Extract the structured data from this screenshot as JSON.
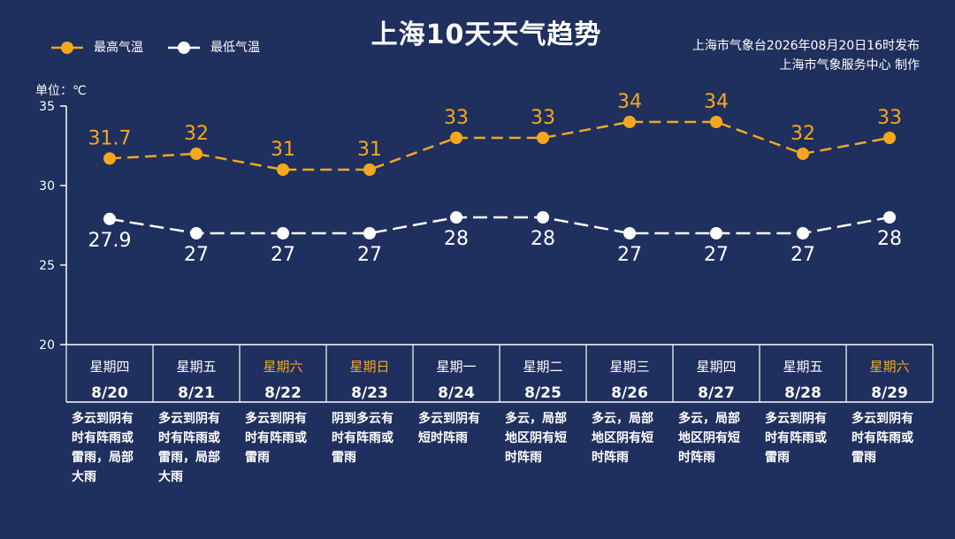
{
  "header": {
    "title": "上海10天天气趋势",
    "source_line1": "上海市气象台2026年08月20日16时发布",
    "source_line2": "上海市气象服务中心 制作"
  },
  "legend": {
    "high_label": "最高气温",
    "low_label": "最低气温"
  },
  "unit_label": "单位：℃",
  "colors": {
    "background": "#1f2f5e",
    "high_series": "#f5a81e",
    "low_series": "#ffffff",
    "weekend": "#f5a81e",
    "weekday": "#ffffff"
  },
  "chart_data": {
    "type": "line",
    "ylim": [
      20,
      35
    ],
    "yticks": [
      "35",
      "30",
      "25",
      "20"
    ],
    "categories": [
      "8/20",
      "8/21",
      "8/22",
      "8/23",
      "8/24",
      "8/25",
      "8/26",
      "8/27",
      "8/28",
      "8/29"
    ],
    "weekdays": [
      "星期四",
      "星期五",
      "星期六",
      "星期日",
      "星期一",
      "星期二",
      "星期三",
      "星期四",
      "星期五",
      "星期六"
    ],
    "weekend": [
      false,
      false,
      true,
      true,
      false,
      false,
      false,
      false,
      false,
      true
    ],
    "series": [
      {
        "name": "最高气温",
        "values": [
          31.7,
          32,
          31,
          31,
          33,
          33,
          34,
          34,
          32,
          33
        ],
        "labels": [
          "31.7",
          "32",
          "31",
          "31",
          "33",
          "33",
          "34",
          "34",
          "32",
          "33"
        ]
      },
      {
        "name": "最低气温",
        "values": [
          27.9,
          27,
          27,
          27,
          28,
          28,
          27,
          27,
          27,
          28
        ],
        "labels": [
          "27.9",
          "27",
          "27",
          "27",
          "28",
          "28",
          "27",
          "27",
          "27",
          "28"
        ]
      }
    ],
    "descriptions": [
      [
        "多云到阴有",
        "时有阵雨或",
        "雷雨，局部",
        "大雨"
      ],
      [
        "多云到阴有",
        "时有阵雨或",
        "雷雨，局部",
        "大雨"
      ],
      [
        "多云到阴有",
        "时有阵雨或",
        "雷雨"
      ],
      [
        "阴到多云有",
        "时有阵雨或",
        "雷雨"
      ],
      [
        "多云到阴有",
        "短时阵雨"
      ],
      [
        "多云，局部",
        "地区阴有短",
        "时阵雨"
      ],
      [
        "多云，局部",
        "地区阴有短",
        "时阵雨"
      ],
      [
        "多云，局部",
        "地区阴有短",
        "时阵雨"
      ],
      [
        "多云到阴有",
        "时有阵雨或",
        "雷雨"
      ],
      [
        "多云到阴有",
        "时有阵雨或",
        "雷雨"
      ]
    ]
  }
}
